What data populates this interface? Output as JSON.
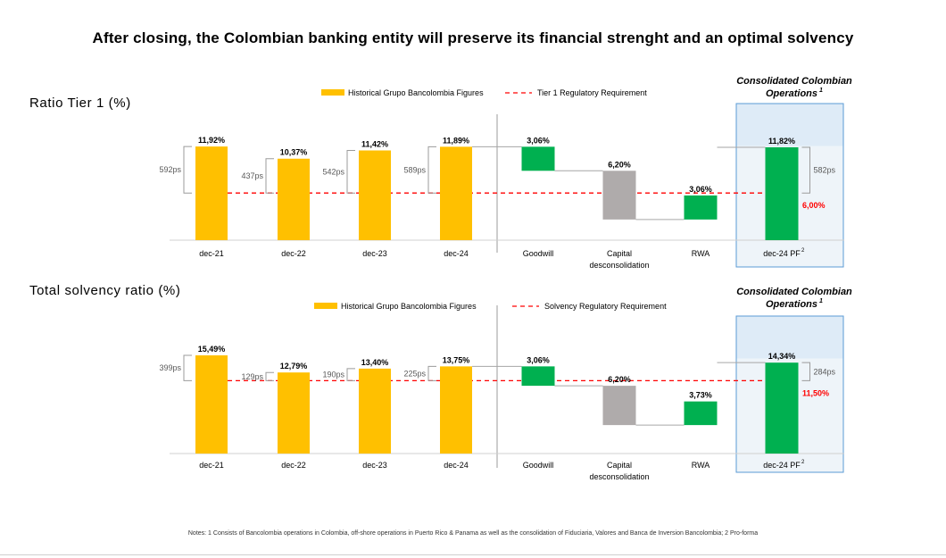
{
  "title": "After closing, the Colombian banking entity will preserve its financial strenght and an optimal solvency",
  "notes": "Notes: 1 Consists of Bancolombia operations in Colombia, off-shore operations in Puerto Rico & Panama as well as the consolidation of Fiduciaria, Valores and Banca de Inversion Bancolombia; 2 Pro-forma",
  "colors": {
    "historical": "#FFC000",
    "green": "#00B050",
    "gray": "#AFABAB",
    "requirement": "#FF0000",
    "box": "#DEEBF7",
    "box_border": "#5B9BD5"
  },
  "chart_data": [
    {
      "type": "bar",
      "title": "Ratio Tier 1 (%)",
      "legend": {
        "historical": "Historical Grupo Bancolombia Figures",
        "requirement": "Tier 1 Regulatory Requirement"
      },
      "box_label_line1": "Consolidated Colombian",
      "box_label_line2": "Operations",
      "box_label_sup": "1",
      "historical": {
        "categories": [
          "dec-21",
          "dec-22",
          "dec-23",
          "dec-24"
        ],
        "values": [
          11.92,
          10.37,
          11.42,
          11.89
        ],
        "labels": [
          "11,92%",
          "10,37%",
          "11,42%",
          "11,89%"
        ],
        "gaps": [
          "592ps",
          "437ps",
          "542ps",
          "589ps"
        ]
      },
      "waterfall": [
        {
          "category": "Goodwill",
          "value_label": "3,06%",
          "color": "green",
          "start": 11.89,
          "end": 8.83
        },
        {
          "category": "Capital",
          "category2": "desconsolidation",
          "value_label": "6,20%",
          "color": "gray",
          "start": 8.83,
          "end": 2.63
        },
        {
          "category": "RWA",
          "value_label": "3,06%",
          "color": "green",
          "start": 2.63,
          "end": 5.69
        },
        {
          "category": "dec-24 PF",
          "category_sup": "2",
          "value_label": "11,82%",
          "color": "green",
          "start": 11.82,
          "end": 0
        }
      ],
      "final_gap": "582ps",
      "requirement_value": 6.0,
      "requirement_label": "6,00%",
      "ylim": [
        0,
        14
      ]
    },
    {
      "type": "bar",
      "title": "Total solvency ratio (%)",
      "legend": {
        "historical": "Historical Grupo Bancolombia Figures",
        "requirement": "Solvency Regulatory Requirement"
      },
      "box_label_line1": "Consolidated Colombian",
      "box_label_line2": "Operations",
      "box_label_sup": "1",
      "historical": {
        "categories": [
          "dec-21",
          "dec-22",
          "dec-23",
          "dec-24"
        ],
        "values": [
          15.49,
          12.79,
          13.4,
          13.75
        ],
        "labels": [
          "15,49%",
          "12,79%",
          "13,40%",
          "13,75%"
        ],
        "gaps": [
          "399ps",
          "129ps",
          "190ps",
          "225ps"
        ]
      },
      "waterfall": [
        {
          "category": "Goodwill",
          "value_label": "3,06%",
          "color": "green",
          "start": 13.75,
          "end": 10.69
        },
        {
          "category": "Capital",
          "category2": "desconsolidation",
          "value_label": "6,20%",
          "color": "gray",
          "start": 10.69,
          "end": 4.49
        },
        {
          "category": "RWA",
          "value_label": "3,73%",
          "color": "green",
          "start": 4.49,
          "end": 8.22
        },
        {
          "category": "dec-24 PF",
          "category_sup": "2",
          "value_label": "14,34%",
          "color": "green",
          "start": 14.34,
          "end": 0
        }
      ],
      "final_gap": "284ps",
      "requirement_value": 11.5,
      "requirement_label": "11,50%",
      "ylim": [
        0,
        18
      ]
    }
  ]
}
